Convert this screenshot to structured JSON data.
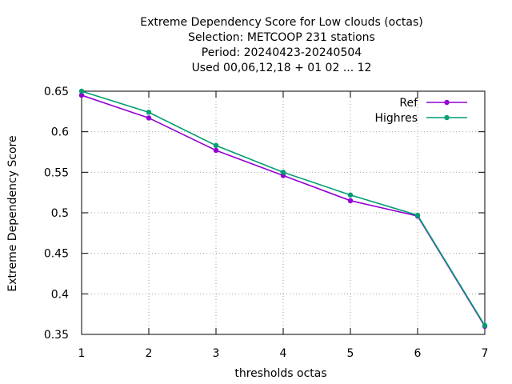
{
  "chart_data": {
    "type": "line",
    "title_lines": [
      "Extreme Dependency Score  for Low clouds (octas)",
      "Selection: METCOOP    231 stations",
      "Period: 20240423-20240504",
      "Used  00,06,12,18 + 01 02 ... 12"
    ],
    "xlabel": "thresholds octas",
    "ylabel": "Extreme Dependency Score",
    "x": [
      1,
      2,
      3,
      4,
      5,
      6,
      7
    ],
    "xlim": [
      1,
      7
    ],
    "ylim": [
      0.35,
      0.65
    ],
    "xticks": [
      1,
      2,
      3,
      4,
      5,
      6,
      7
    ],
    "yticks": [
      0.35,
      0.4,
      0.45,
      0.5,
      0.55,
      0.6,
      0.65
    ],
    "xtick_labels": [
      "1",
      "2",
      "3",
      "4",
      "5",
      "6",
      "7"
    ],
    "ytick_labels": [
      "0.35",
      "0.4",
      "0.45",
      "0.5",
      "0.55",
      "0.6",
      "0.65"
    ],
    "grid": true,
    "legend_position": "top-right",
    "series": [
      {
        "name": "Ref",
        "color": "#9400d3",
        "values": [
          0.645,
          0.617,
          0.577,
          0.546,
          0.515,
          0.496,
          0.36
        ]
      },
      {
        "name": "Highres",
        "color": "#009e73",
        "values": [
          0.65,
          0.624,
          0.583,
          0.55,
          0.522,
          0.497,
          0.361
        ]
      }
    ]
  }
}
